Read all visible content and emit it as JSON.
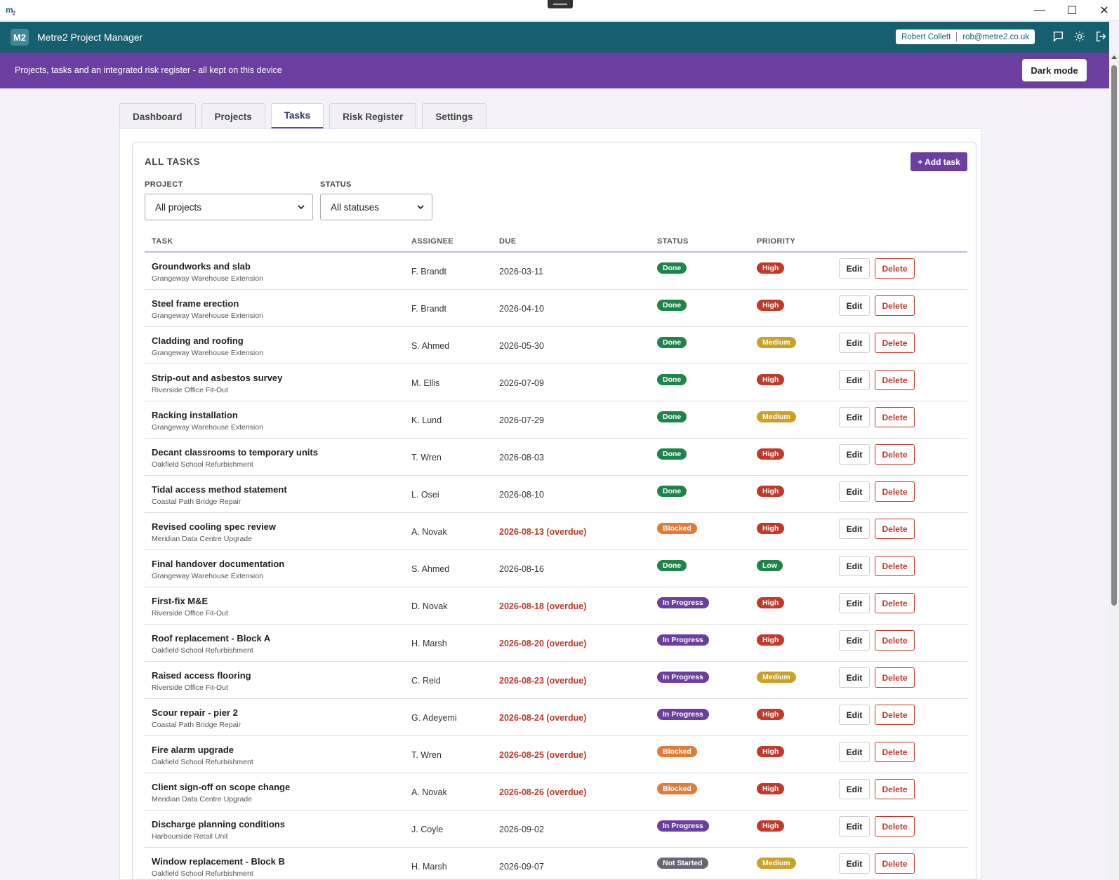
{
  "window": {
    "logo_text": "m",
    "logo_sub": "2",
    "min_glyph": "—",
    "max_glyph": "☐",
    "close_glyph": "✕"
  },
  "header": {
    "badge": "M2",
    "title": "Metre2 Project Manager",
    "user_name": "Robert Collett",
    "user_email": "rob@metre2.co.uk",
    "icons": [
      "chat-icon",
      "gear-icon",
      "logout-icon"
    ]
  },
  "banner": {
    "message": "Projects, tasks and an integrated risk register - all kept on this device",
    "dark_mode_label": "Dark mode"
  },
  "tabs": [
    {
      "label": "Dashboard",
      "active": false
    },
    {
      "label": "Projects",
      "active": false
    },
    {
      "label": "Tasks",
      "active": true
    },
    {
      "label": "Risk Register",
      "active": false
    },
    {
      "label": "Settings",
      "active": false
    }
  ],
  "card": {
    "title": "ALL TASKS",
    "add_label": "+ Add task"
  },
  "filters": {
    "project_label": "PROJECT",
    "project_value": "All projects",
    "status_label": "STATUS",
    "status_value": "All statuses"
  },
  "table": {
    "headers": {
      "task": "TASK",
      "assignee": "ASSIGNEE",
      "due": "DUE",
      "status": "STATUS",
      "priority": "PRIORITY"
    },
    "edit_label": "Edit",
    "delete_label": "Delete",
    "rows": [
      {
        "task": "Groundworks and slab",
        "project": "Grangeway Warehouse Extension",
        "assignee": "F. Brandt",
        "due": "2026-03-11",
        "overdue": false,
        "status": "Done",
        "priority": "High"
      },
      {
        "task": "Steel frame erection",
        "project": "Grangeway Warehouse Extension",
        "assignee": "F. Brandt",
        "due": "2026-04-10",
        "overdue": false,
        "status": "Done",
        "priority": "High"
      },
      {
        "task": "Cladding and roofing",
        "project": "Grangeway Warehouse Extension",
        "assignee": "S. Ahmed",
        "due": "2026-05-30",
        "overdue": false,
        "status": "Done",
        "priority": "Medium"
      },
      {
        "task": "Strip-out and asbestos survey",
        "project": "Riverside Office Fit-Out",
        "assignee": "M. Ellis",
        "due": "2026-07-09",
        "overdue": false,
        "status": "Done",
        "priority": "High"
      },
      {
        "task": "Racking installation",
        "project": "Grangeway Warehouse Extension",
        "assignee": "K. Lund",
        "due": "2026-07-29",
        "overdue": false,
        "status": "Done",
        "priority": "Medium"
      },
      {
        "task": "Decant classrooms to temporary units",
        "project": "Oakfield School Refurbishment",
        "assignee": "T. Wren",
        "due": "2026-08-03",
        "overdue": false,
        "status": "Done",
        "priority": "High"
      },
      {
        "task": "Tidal access method statement",
        "project": "Coastal Path Bridge Repair",
        "assignee": "L. Osei",
        "due": "2026-08-10",
        "overdue": false,
        "status": "Done",
        "priority": "High"
      },
      {
        "task": "Revised cooling spec review",
        "project": "Meridian Data Centre Upgrade",
        "assignee": "A. Novak",
        "due": "2026-08-13 (overdue)",
        "overdue": true,
        "status": "Blocked",
        "priority": "High"
      },
      {
        "task": "Final handover documentation",
        "project": "Grangeway Warehouse Extension",
        "assignee": "S. Ahmed",
        "due": "2026-08-16",
        "overdue": false,
        "status": "Done",
        "priority": "Low"
      },
      {
        "task": "First-fix M&E",
        "project": "Riverside Office Fit-Out",
        "assignee": "D. Novak",
        "due": "2026-08-18 (overdue)",
        "overdue": true,
        "status": "In Progress",
        "priority": "High"
      },
      {
        "task": "Roof replacement - Block A",
        "project": "Oakfield School Refurbishment",
        "assignee": "H. Marsh",
        "due": "2026-08-20 (overdue)",
        "overdue": true,
        "status": "In Progress",
        "priority": "High"
      },
      {
        "task": "Raised access flooring",
        "project": "Riverside Office Fit-Out",
        "assignee": "C. Reid",
        "due": "2026-08-23 (overdue)",
        "overdue": true,
        "status": "In Progress",
        "priority": "Medium"
      },
      {
        "task": "Scour repair - pier 2",
        "project": "Coastal Path Bridge Repair",
        "assignee": "G. Adeyemi",
        "due": "2026-08-24 (overdue)",
        "overdue": true,
        "status": "In Progress",
        "priority": "High"
      },
      {
        "task": "Fire alarm upgrade",
        "project": "Oakfield School Refurbishment",
        "assignee": "T. Wren",
        "due": "2026-08-25 (overdue)",
        "overdue": true,
        "status": "Blocked",
        "priority": "High"
      },
      {
        "task": "Client sign-off on scope change",
        "project": "Meridian Data Centre Upgrade",
        "assignee": "A. Novak",
        "due": "2026-08-26 (overdue)",
        "overdue": true,
        "status": "Blocked",
        "priority": "High"
      },
      {
        "task": "Discharge planning conditions",
        "project": "Harbourside Retail Unit",
        "assignee": "J. Coyle",
        "due": "2026-09-02",
        "overdue": false,
        "status": "In Progress",
        "priority": "High"
      },
      {
        "task": "Window replacement - Block B",
        "project": "Oakfield School Refurbishment",
        "assignee": "H. Marsh",
        "due": "2026-09-07",
        "overdue": false,
        "status": "Not Started",
        "priority": "Medium"
      }
    ]
  },
  "colors": {
    "header_bg": "#165f6e",
    "banner_bg": "#6b3fa0",
    "status_Done": "#1e8449",
    "status_Blocked": "#e07b39",
    "status_In Progress": "#6b3fa0",
    "status_Not Started": "#6b6578",
    "priority_High": "#c0392b",
    "priority_Medium": "#c9a227",
    "priority_Low": "#1e8449",
    "overdue": "#c0392b"
  }
}
